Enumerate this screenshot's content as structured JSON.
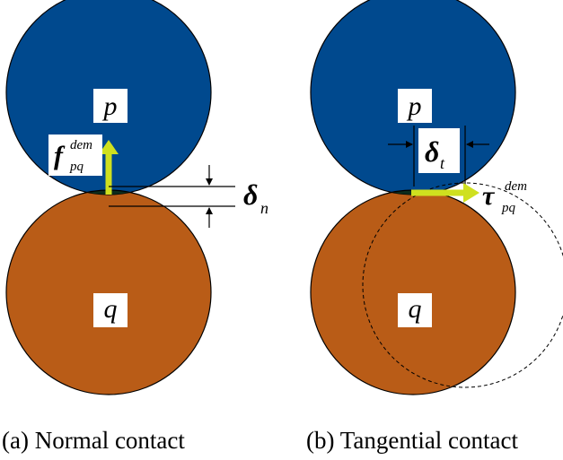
{
  "colors": {
    "particle_p": "#00498e",
    "particle_q": "#b95c17",
    "overlap": "#0c2c1c",
    "arrow": "#cfe01f",
    "outline": "#000000",
    "label_bg": "#ffffff"
  },
  "panel_a": {
    "label_p": "p",
    "label_q": "q",
    "force": {
      "symbol": "f",
      "superscript": "dem",
      "subscript": "pq"
    },
    "overlap": {
      "symbol": "δ",
      "subscript": "n"
    },
    "caption": "(a) Normal contact"
  },
  "panel_b": {
    "label_p": "p",
    "label_q": "q",
    "force": {
      "symbol": "τ",
      "superscript": "dem",
      "subscript": "pq"
    },
    "overlap": {
      "symbol": "δ",
      "subscript": "t"
    },
    "caption": "(b) Tangential contact"
  }
}
